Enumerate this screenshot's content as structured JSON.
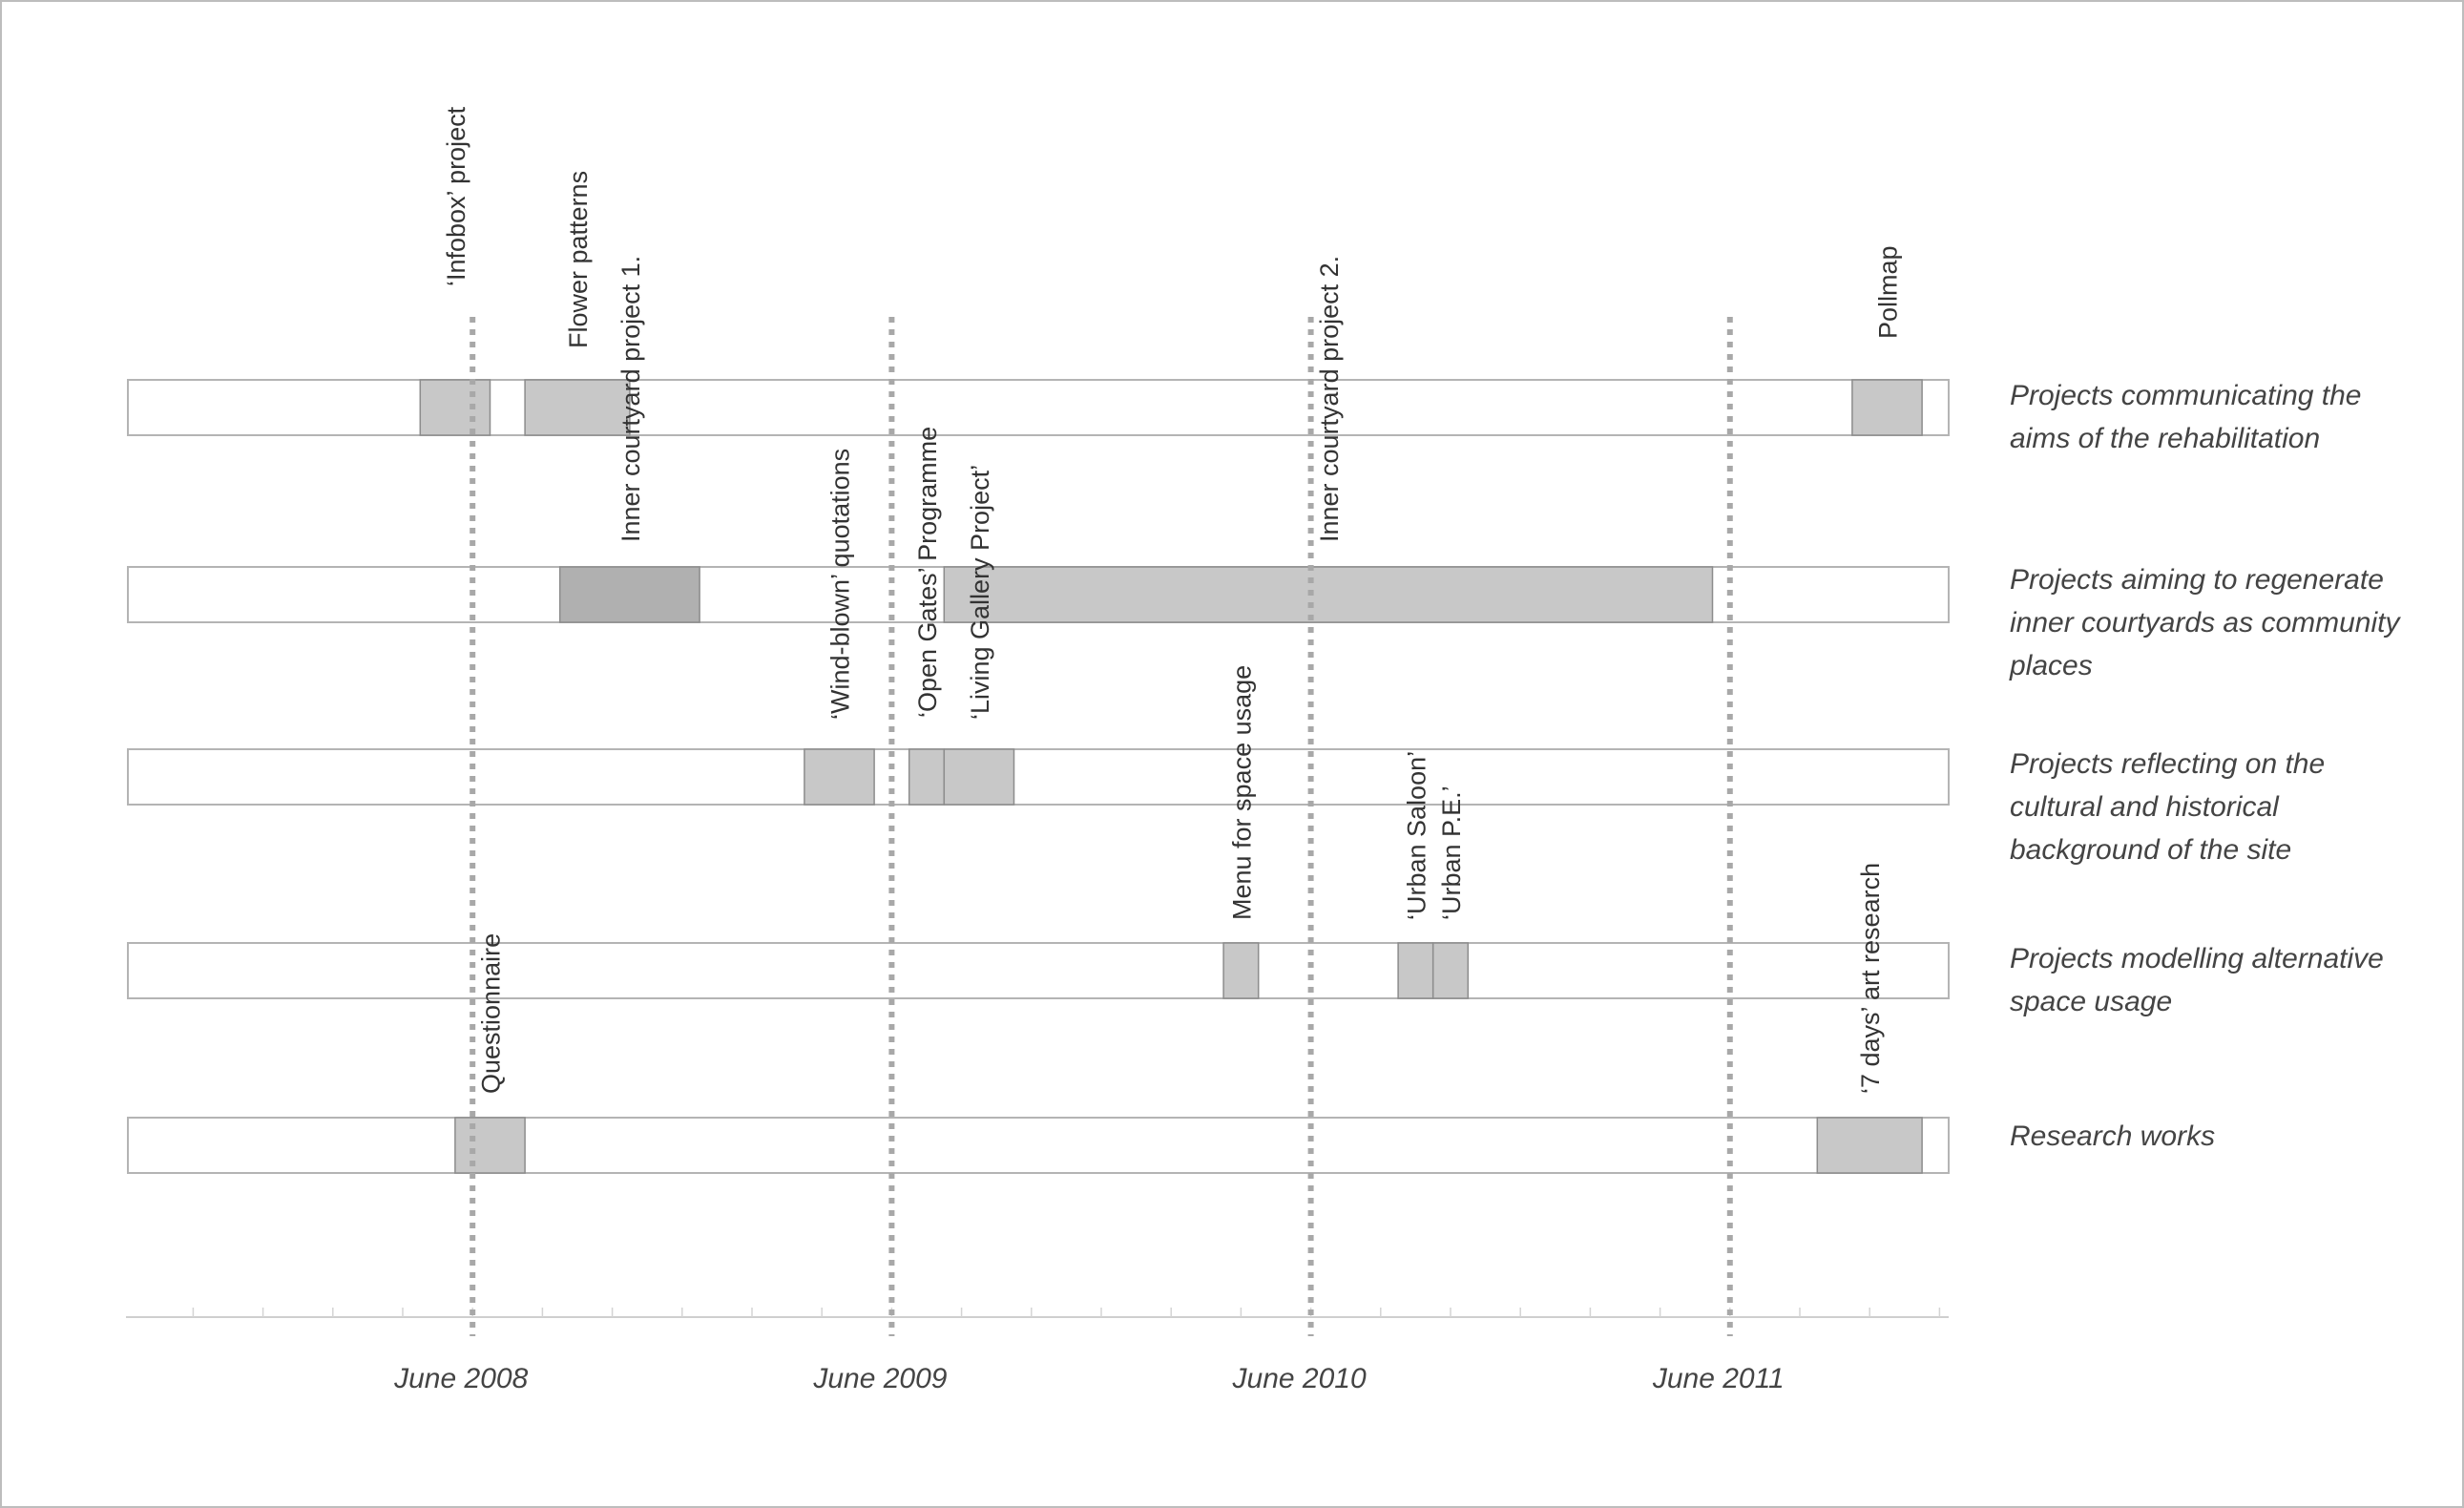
{
  "chart_data": {
    "type": "timeline",
    "x_axis": {
      "unit": "month index from June 2007 = 0 (axis start ~2007-06)",
      "tick_labels": [
        {
          "text": "June 2008",
          "month": 12
        },
        {
          "text": "June 2009",
          "month": 24
        },
        {
          "text": "June 2010",
          "month": 36
        },
        {
          "text": "June 2011",
          "month": 48
        }
      ]
    },
    "rows": [
      {
        "label_lines": [
          "Projects communicating the",
          "aims of the rehabilitation"
        ],
        "projects": [
          {
            "name": "‘Infobox’ project",
            "start": "2008-05",
            "end": "2008-06",
            "shade": "#c8c8c8"
          },
          {
            "name": "Flower patterns",
            "start": "2008-08",
            "end": "2008-10",
            "shade": "#c8c8c8"
          },
          {
            "name": "Pollmap",
            "start": "2011-10",
            "end": "2011-11",
            "shade": "#c8c8c8"
          }
        ]
      },
      {
        "label_lines": [
          "Projects aiming to regenerate",
          "inner courtyards as community",
          "places"
        ],
        "projects": [
          {
            "name": "Inner courtyard project 1.",
            "start": "2008-09",
            "end": "2008-12",
            "shade": "#b0b0b0"
          },
          {
            "name": "Inner courtyard project 2.",
            "start": "2009-08",
            "end": "2011-05",
            "shade": "#c8c8c8"
          }
        ]
      },
      {
        "label_lines": [
          "Projects reflecting on the",
          "cultural and historical",
          "background of the site"
        ],
        "projects": [
          {
            "name": "‘Wind-blown’ quotations",
            "start": "2009-04",
            "end": "2009-05",
            "shade": "#c8c8c8"
          },
          {
            "name": "‘Open Gates’ Programme",
            "start": "2009-07",
            "end": "2009-07",
            "shade": "#c8c8c8"
          },
          {
            "name": "‘Living Gallery Project’",
            "start": "2009-08",
            "end": "2009-09",
            "shade": "#c8c8c8"
          }
        ]
      },
      {
        "label_lines": [
          "Projects modelling alternative",
          "space usage"
        ],
        "projects": [
          {
            "name": "Menu for space usage",
            "start": "2010-04",
            "end": "2010-04",
            "shade": "#c8c8c8"
          },
          {
            "name": "‘Urban Saloon’",
            "start": "2010-09",
            "end": "2010-09",
            "shade": "#c8c8c8"
          },
          {
            "name": "‘Urban P.E.’",
            "start": "2010-10",
            "end": "2010-10",
            "shade": "#c8c8c8"
          }
        ]
      },
      {
        "label_lines": [
          "Research works"
        ],
        "projects": [
          {
            "name": "Questionnaire",
            "start": "2008-06",
            "end": "2008-07",
            "shade": "#c8c8c8"
          },
          {
            "name": "‘7 days’ art research",
            "start": "2011-09",
            "end": "2011-11",
            "shade": "#c8c8c8"
          }
        ]
      }
    ]
  }
}
